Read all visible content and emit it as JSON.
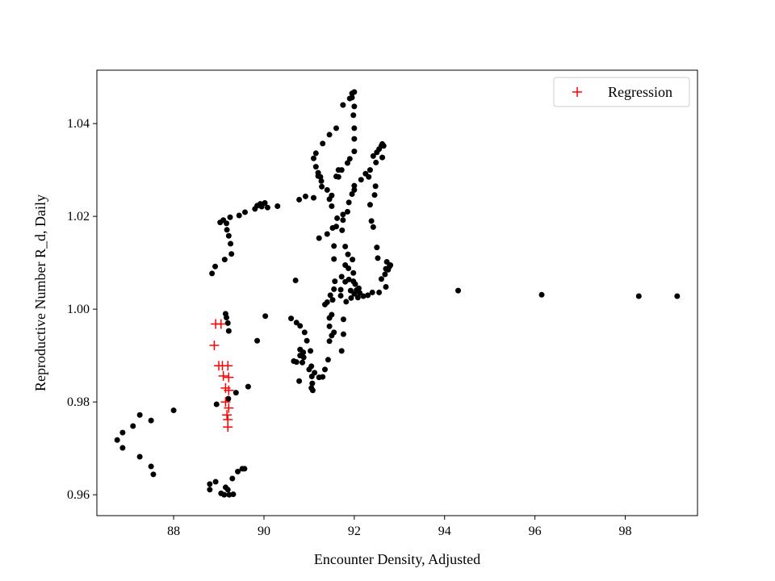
{
  "chart_data": {
    "type": "scatter",
    "title": "",
    "xlabel": "Encounter Density, Adjusted",
    "ylabel": "Reproductive Number R_d, Daily",
    "xlim": [
      86.3,
      99.6
    ],
    "ylim": [
      0.9555,
      1.0515
    ],
    "xticks": [
      88,
      90,
      92,
      94,
      96,
      98
    ],
    "yticks": [
      0.96,
      0.98,
      1.0,
      1.02,
      1.04
    ],
    "xtick_labels": [
      "88",
      "90",
      "92",
      "94",
      "96",
      "98"
    ],
    "ytick_labels": [
      "0.96",
      "0.98",
      "1.00",
      "1.02",
      "1.04"
    ],
    "grid": false,
    "legend_position": "top-right",
    "colors": {
      "observed": "#000000",
      "regression": "#ff0000"
    },
    "series": [
      {
        "marker": "dot",
        "color": "#000000",
        "points": [
          [
            86.75,
            0.9718
          ],
          [
            86.87,
            0.9701
          ],
          [
            86.87,
            0.9734
          ],
          [
            87.1,
            0.9748
          ],
          [
            87.25,
            0.9772
          ],
          [
            87.25,
            0.9682
          ],
          [
            87.5,
            0.9661
          ],
          [
            87.5,
            0.976
          ],
          [
            87.55,
            0.9644
          ],
          [
            88.0,
            0.9782
          ],
          [
            88.8,
            0.9623
          ],
          [
            88.8,
            0.9611
          ],
          [
            88.85,
            1.0077
          ],
          [
            88.92,
            1.0092
          ],
          [
            88.93,
            0.9628
          ],
          [
            88.95,
            0.9795
          ],
          [
            89.03,
            1.0187
          ],
          [
            89.05,
            0.9603
          ],
          [
            89.1,
            1.0192
          ],
          [
            89.12,
            0.96
          ],
          [
            89.13,
            1.0107
          ],
          [
            89.15,
            0.9616
          ],
          [
            89.15,
            0.999
          ],
          [
            89.17,
            0.9982
          ],
          [
            89.17,
            1.0185
          ],
          [
            89.18,
            1.0171
          ],
          [
            89.2,
            0.997
          ],
          [
            89.2,
            0.9611
          ],
          [
            89.21,
            0.9807
          ],
          [
            89.22,
            1.0158
          ],
          [
            89.22,
            0.9953
          ],
          [
            89.23,
            0.96
          ],
          [
            89.26,
            1.0141
          ],
          [
            89.25,
            1.0198
          ],
          [
            89.28,
            1.0119
          ],
          [
            89.3,
            0.9635
          ],
          [
            89.32,
            0.9601
          ],
          [
            89.38,
            0.982
          ],
          [
            89.42,
            0.965
          ],
          [
            89.45,
            1.0202
          ],
          [
            89.52,
            0.9656
          ],
          [
            89.57,
            0.9656
          ],
          [
            89.58,
            1.0209
          ],
          [
            89.65,
            0.9833
          ],
          [
            89.8,
            1.0216
          ],
          [
            89.85,
            1.0223
          ],
          [
            89.85,
            0.9932
          ],
          [
            89.92,
            1.0227
          ],
          [
            89.95,
            1.0221
          ],
          [
            90.02,
            1.0229
          ],
          [
            90.03,
            0.9985
          ],
          [
            90.08,
            1.0219
          ],
          [
            90.3,
            1.0222
          ],
          [
            90.6,
            0.998
          ],
          [
            90.66,
            0.9888
          ],
          [
            90.7,
            1.0062
          ],
          [
            90.72,
            0.9971
          ],
          [
            90.72,
            0.9886
          ],
          [
            90.78,
            0.9845
          ],
          [
            90.8,
            0.9964
          ],
          [
            90.8,
            0.99
          ],
          [
            90.8,
            0.9913
          ],
          [
            90.78,
            1.0236
          ],
          [
            90.85,
            0.9885
          ],
          [
            90.87,
            0.9907
          ],
          [
            90.88,
            0.9896
          ],
          [
            90.9,
            0.995
          ],
          [
            90.92,
            1.0243
          ],
          [
            90.95,
            0.9932
          ],
          [
            91.0,
            0.987
          ],
          [
            91.03,
            0.991
          ],
          [
            91.05,
            0.983
          ],
          [
            91.05,
            0.9877
          ],
          [
            91.06,
            0.9855
          ],
          [
            91.07,
            0.984
          ],
          [
            91.08,
            0.9825
          ],
          [
            91.1,
            1.0325
          ],
          [
            91.1,
            1.024
          ],
          [
            91.12,
            0.9863
          ],
          [
            91.15,
            1.0307
          ],
          [
            91.15,
            1.0336
          ],
          [
            91.2,
            1.0287
          ],
          [
            91.2,
            1.0294
          ],
          [
            91.22,
            0.9853
          ],
          [
            91.22,
            1.0153
          ],
          [
            91.25,
            1.0285
          ],
          [
            91.27,
            1.0276
          ],
          [
            91.28,
            1.0264
          ],
          [
            91.3,
            0.9854
          ],
          [
            91.3,
            1.0357
          ],
          [
            91.35,
            0.987
          ],
          [
            91.35,
            1.001
          ],
          [
            91.4,
            1.0162
          ],
          [
            91.4,
            1.0015
          ],
          [
            91.42,
            0.9891
          ],
          [
            91.4,
            1.0257
          ],
          [
            91.45,
            1.0237
          ],
          [
            91.45,
            0.9931
          ],
          [
            91.45,
            0.9963
          ],
          [
            91.45,
            0.9981
          ],
          [
            91.45,
            1.0376
          ],
          [
            91.47,
            1.003
          ],
          [
            91.5,
            0.9943
          ],
          [
            91.5,
            1.0222
          ],
          [
            91.5,
            1.0245
          ],
          [
            91.5,
            0.9988
          ],
          [
            91.52,
            1.002
          ],
          [
            91.52,
            1.0175
          ],
          [
            91.55,
            0.995
          ],
          [
            91.55,
            1.0136
          ],
          [
            91.55,
            1.0108
          ],
          [
            91.55,
            1.0043
          ],
          [
            91.57,
            1.006
          ],
          [
            91.6,
            1.039
          ],
          [
            91.6,
            1.0178
          ],
          [
            91.6,
            1.0286
          ],
          [
            91.62,
            1.0196
          ],
          [
            91.65,
            1.03
          ],
          [
            91.65,
            1.0285
          ],
          [
            91.7,
            1.0029
          ],
          [
            91.7,
            1.0042
          ],
          [
            91.72,
            1.007
          ],
          [
            91.72,
            1.03
          ],
          [
            91.73,
            1.017
          ],
          [
            91.75,
            1.044
          ],
          [
            91.75,
            1.0192
          ],
          [
            91.76,
            0.9946
          ],
          [
            91.76,
            0.9978
          ],
          [
            91.75,
            1.0204
          ],
          [
            91.72,
            0.991
          ],
          [
            91.8,
            1.0135
          ],
          [
            91.8,
            1.0095
          ],
          [
            91.8,
            1.0059
          ],
          [
            91.82,
            1.0016
          ],
          [
            91.85,
            1.0315
          ],
          [
            91.85,
            1.021
          ],
          [
            91.86,
            1.0118
          ],
          [
            91.87,
            1.0088
          ],
          [
            91.88,
            1.0064
          ],
          [
            91.88,
            1.023
          ],
          [
            91.9,
            1.0454
          ],
          [
            91.9,
            1.0324
          ],
          [
            91.92,
            1.004
          ],
          [
            91.93,
            1.0024
          ],
          [
            91.95,
            1.0465
          ],
          [
            91.95,
            1.0456
          ],
          [
            91.95,
            1.0248
          ],
          [
            91.96,
            1.0107
          ],
          [
            91.98,
            1.0418
          ],
          [
            91.98,
            1.0078
          ],
          [
            91.98,
            1.006
          ],
          [
            92.0,
            1.0468
          ],
          [
            92.0,
            1.0437
          ],
          [
            92.0,
            1.039
          ],
          [
            92.0,
            1.0367
          ],
          [
            92.0,
            1.034
          ],
          [
            92.0,
            1.0266
          ],
          [
            92.0,
            1.0257
          ],
          [
            92.0,
            1.0033
          ],
          [
            92.02,
            1.0054
          ],
          [
            92.05,
            1.0041
          ],
          [
            92.08,
            1.0025
          ],
          [
            92.1,
            1.0045
          ],
          [
            92.12,
            1.0035
          ],
          [
            92.15,
            1.0279
          ],
          [
            92.2,
            1.0028
          ],
          [
            92.25,
            1.0292
          ],
          [
            92.3,
            1.003
          ],
          [
            92.32,
            1.0285
          ],
          [
            92.35,
            1.03
          ],
          [
            92.35,
            1.0225
          ],
          [
            92.38,
            1.019
          ],
          [
            92.4,
            1.0036
          ],
          [
            92.42,
            1.0177
          ],
          [
            92.42,
            1.033
          ],
          [
            92.45,
            1.0246
          ],
          [
            92.47,
            1.0265
          ],
          [
            92.48,
            1.0316
          ],
          [
            92.5,
            1.0338
          ],
          [
            92.5,
            1.0133
          ],
          [
            92.52,
            1.011
          ],
          [
            92.55,
            1.0036
          ],
          [
            92.55,
            1.0345
          ],
          [
            92.6,
            1.0352
          ],
          [
            92.6,
            1.0065
          ],
          [
            92.62,
            1.0327
          ],
          [
            92.62,
            1.0356
          ],
          [
            92.65,
            1.0352
          ],
          [
            92.68,
            1.0075
          ],
          [
            92.7,
            1.0087
          ],
          [
            92.72,
            1.0102
          ],
          [
            92.75,
            1.0085
          ],
          [
            92.78,
            1.0092
          ],
          [
            92.8,
            1.0095
          ],
          [
            92.7,
            1.0048
          ],
          [
            94.3,
            1.004
          ],
          [
            96.15,
            1.0031
          ],
          [
            98.3,
            1.0028
          ],
          [
            99.15,
            1.0028
          ]
        ]
      },
      {
        "name": "Regression",
        "marker": "plus",
        "color": "#ff0000",
        "points": [
          [
            88.93,
            0.9968
          ],
          [
            89.05,
            0.9968
          ],
          [
            88.9,
            0.9922
          ],
          [
            89.0,
            0.9878
          ],
          [
            89.08,
            0.9878
          ],
          [
            89.2,
            0.9878
          ],
          [
            89.1,
            0.9856
          ],
          [
            89.22,
            0.9853
          ],
          [
            89.15,
            0.983
          ],
          [
            89.22,
            0.9825
          ],
          [
            89.15,
            0.98
          ],
          [
            89.22,
            0.9787
          ],
          [
            89.18,
            0.9772
          ],
          [
            89.2,
            0.9762
          ],
          [
            89.2,
            0.9746
          ]
        ]
      }
    ]
  }
}
